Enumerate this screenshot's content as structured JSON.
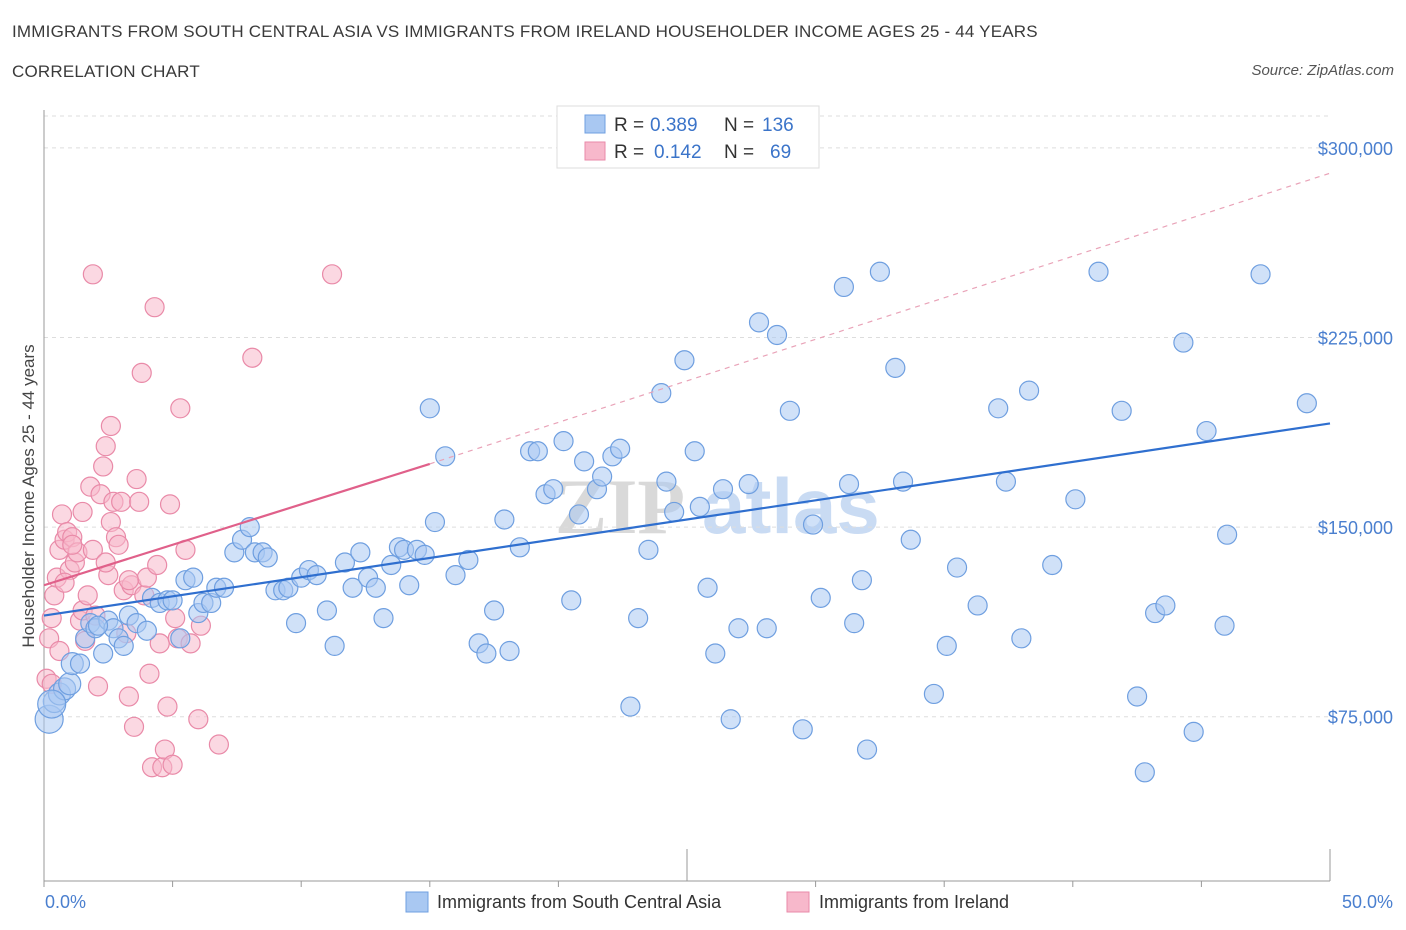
{
  "title": "IMMIGRANTS FROM SOUTH CENTRAL ASIA VS IMMIGRANTS FROM IRELAND HOUSEHOLDER INCOME AGES 25 - 44 YEARS",
  "subtitle": "CORRELATION CHART",
  "source": "Source: ZipAtlas.com",
  "watermark": {
    "zip": "ZIP",
    "atlas": "atlas"
  },
  "legend": {
    "r_label": "R =",
    "n_label": "N =",
    "series_a": {
      "r": "0.389",
      "n": "136"
    },
    "series_b": {
      "r": "0.142",
      "n": "69"
    }
  },
  "chart_data": {
    "type": "scatter",
    "title": "IMMIGRANTS FROM SOUTH CENTRAL ASIA VS IMMIGRANTS FROM IRELAND HOUSEHOLDER INCOME AGES 25 - 44 YEARS",
    "xlabel": "",
    "ylabel": "Householder Income Ages 25 - 44 years",
    "xlim": [
      0,
      50
    ],
    "ylim": [
      10000,
      315000
    ],
    "x_tick_labels": [
      "0.0%",
      "50.0%"
    ],
    "x_tick_values": [
      0,
      50
    ],
    "y_ticks": [
      {
        "value": 75000,
        "label": "$75,000"
      },
      {
        "value": 150000,
        "label": "$150,000"
      },
      {
        "value": 225000,
        "label": "$225,000"
      },
      {
        "value": 300000,
        "label": "$300,000"
      }
    ],
    "colors": {
      "a_fill": "#a9c8f2",
      "a_stroke": "#6f9fe0",
      "a_line": "#2f6fcf",
      "b_fill": "#f7b8cb",
      "b_stroke": "#e98aa8",
      "b_line": "#e0608a"
    },
    "series": [
      {
        "name": "Immigrants from South Central Asia",
        "trend": {
          "x": [
            0,
            50
          ],
          "y": [
            115000,
            191000
          ]
        },
        "points": [
          [
            0.2,
            74000
          ],
          [
            0.4,
            81000
          ],
          [
            0.6,
            84000
          ],
          [
            0.8,
            86000
          ],
          [
            1.0,
            88000
          ],
          [
            1.1,
            96000
          ],
          [
            1.4,
            96000
          ],
          [
            1.6,
            106000
          ],
          [
            1.8,
            112000
          ],
          [
            2.0,
            110000
          ],
          [
            2.3,
            100000
          ],
          [
            2.5,
            113000
          ],
          [
            2.7,
            110000
          ],
          [
            2.9,
            106000
          ],
          [
            3.1,
            103000
          ],
          [
            3.3,
            115000
          ],
          [
            3.6,
            112000
          ],
          [
            4.0,
            109000
          ],
          [
            4.2,
            122000
          ],
          [
            4.5,
            120000
          ],
          [
            4.8,
            121000
          ],
          [
            5.0,
            121000
          ],
          [
            5.3,
            106000
          ],
          [
            5.5,
            129000
          ],
          [
            5.8,
            130000
          ],
          [
            6.0,
            116000
          ],
          [
            6.2,
            120000
          ],
          [
            6.5,
            120000
          ],
          [
            6.7,
            126000
          ],
          [
            7.0,
            126000
          ],
          [
            7.4,
            140000
          ],
          [
            7.7,
            145000
          ],
          [
            8.0,
            150000
          ],
          [
            8.2,
            140000
          ],
          [
            8.5,
            140000
          ],
          [
            8.7,
            138000
          ],
          [
            9.0,
            125000
          ],
          [
            9.3,
            125000
          ],
          [
            9.5,
            126000
          ],
          [
            9.8,
            112000
          ],
          [
            10.0,
            130000
          ],
          [
            10.3,
            133000
          ],
          [
            10.6,
            131000
          ],
          [
            11.0,
            117000
          ],
          [
            11.3,
            103000
          ],
          [
            11.7,
            136000
          ],
          [
            12.0,
            126000
          ],
          [
            12.3,
            140000
          ],
          [
            12.6,
            130000
          ],
          [
            12.9,
            126000
          ],
          [
            13.2,
            114000
          ],
          [
            13.5,
            135000
          ],
          [
            13.8,
            142000
          ],
          [
            14.0,
            141000
          ],
          [
            14.2,
            127000
          ],
          [
            14.5,
            141000
          ],
          [
            14.8,
            139000
          ],
          [
            15.0,
            197000
          ],
          [
            15.2,
            152000
          ],
          [
            15.6,
            178000
          ],
          [
            16.0,
            131000
          ],
          [
            16.5,
            137000
          ],
          [
            16.9,
            104000
          ],
          [
            17.2,
            100000
          ],
          [
            17.5,
            117000
          ],
          [
            17.9,
            153000
          ],
          [
            18.1,
            101000
          ],
          [
            18.5,
            142000
          ],
          [
            18.9,
            180000
          ],
          [
            19.2,
            180000
          ],
          [
            19.5,
            163000
          ],
          [
            19.8,
            165000
          ],
          [
            20.2,
            184000
          ],
          [
            20.5,
            121000
          ],
          [
            20.8,
            155000
          ],
          [
            21.0,
            176000
          ],
          [
            21.5,
            165000
          ],
          [
            21.7,
            170000
          ],
          [
            22.1,
            178000
          ],
          [
            22.4,
            181000
          ],
          [
            22.8,
            79000
          ],
          [
            23.1,
            114000
          ],
          [
            23.5,
            141000
          ],
          [
            24.0,
            203000
          ],
          [
            24.2,
            168000
          ],
          [
            24.5,
            156000
          ],
          [
            24.9,
            216000
          ],
          [
            25.3,
            180000
          ],
          [
            25.5,
            158000
          ],
          [
            25.8,
            126000
          ],
          [
            26.1,
            100000
          ],
          [
            26.4,
            165000
          ],
          [
            26.7,
            74000
          ],
          [
            27.0,
            110000
          ],
          [
            27.4,
            167000
          ],
          [
            27.8,
            231000
          ],
          [
            28.1,
            110000
          ],
          [
            28.5,
            226000
          ],
          [
            29.0,
            196000
          ],
          [
            29.5,
            70000
          ],
          [
            29.9,
            151000
          ],
          [
            30.2,
            122000
          ],
          [
            31.1,
            245000
          ],
          [
            31.3,
            167000
          ],
          [
            31.5,
            112000
          ],
          [
            31.8,
            129000
          ],
          [
            32.0,
            62000
          ],
          [
            32.5,
            251000
          ],
          [
            33.1,
            213000
          ],
          [
            33.4,
            168000
          ],
          [
            33.7,
            145000
          ],
          [
            34.6,
            84000
          ],
          [
            35.1,
            103000
          ],
          [
            35.5,
            134000
          ],
          [
            36.3,
            119000
          ],
          [
            37.1,
            197000
          ],
          [
            37.4,
            168000
          ],
          [
            38.0,
            106000
          ],
          [
            38.3,
            204000
          ],
          [
            39.2,
            135000
          ],
          [
            40.1,
            161000
          ],
          [
            41.0,
            251000
          ],
          [
            41.9,
            196000
          ],
          [
            42.5,
            83000
          ],
          [
            42.8,
            53000
          ],
          [
            43.2,
            116000
          ],
          [
            43.6,
            119000
          ],
          [
            44.3,
            223000
          ],
          [
            44.7,
            69000
          ],
          [
            45.2,
            188000
          ],
          [
            45.9,
            111000
          ],
          [
            46.0,
            147000
          ],
          [
            47.3,
            250000
          ],
          [
            49.1,
            199000
          ],
          [
            0.3,
            80000
          ],
          [
            2.1,
            111000
          ]
        ]
      },
      {
        "name": "Immigrants from Ireland",
        "trend": {
          "x": [
            0,
            15
          ],
          "y": [
            127000,
            175000
          ]
        },
        "trend_extension": {
          "x": [
            15,
            50
          ],
          "y": [
            175000,
            290000
          ]
        },
        "points": [
          [
            0.1,
            90000
          ],
          [
            0.2,
            106000
          ],
          [
            0.3,
            114000
          ],
          [
            0.4,
            123000
          ],
          [
            0.5,
            130000
          ],
          [
            0.6,
            141000
          ],
          [
            0.7,
            155000
          ],
          [
            0.8,
            145000
          ],
          [
            0.9,
            148000
          ],
          [
            1.0,
            133000
          ],
          [
            1.1,
            146000
          ],
          [
            1.2,
            136000
          ],
          [
            1.3,
            140000
          ],
          [
            1.4,
            113000
          ],
          [
            1.5,
            117000
          ],
          [
            1.6,
            105000
          ],
          [
            1.7,
            123000
          ],
          [
            1.8,
            166000
          ],
          [
            1.9,
            141000
          ],
          [
            2.0,
            115000
          ],
          [
            2.1,
            87000
          ],
          [
            2.2,
            163000
          ],
          [
            2.3,
            174000
          ],
          [
            2.4,
            182000
          ],
          [
            2.5,
            131000
          ],
          [
            2.6,
            152000
          ],
          [
            2.7,
            160000
          ],
          [
            2.8,
            146000
          ],
          [
            2.9,
            143000
          ],
          [
            3.0,
            160000
          ],
          [
            3.1,
            125000
          ],
          [
            3.2,
            108000
          ],
          [
            3.3,
            83000
          ],
          [
            3.4,
            127000
          ],
          [
            3.5,
            71000
          ],
          [
            3.6,
            169000
          ],
          [
            3.7,
            160000
          ],
          [
            3.8,
            211000
          ],
          [
            3.9,
            123000
          ],
          [
            4.0,
            130000
          ],
          [
            4.1,
            92000
          ],
          [
            4.2,
            55000
          ],
          [
            4.3,
            237000
          ],
          [
            4.4,
            135000
          ],
          [
            4.5,
            104000
          ],
          [
            4.6,
            55000
          ],
          [
            4.7,
            62000
          ],
          [
            4.8,
            79000
          ],
          [
            4.9,
            159000
          ],
          [
            5.0,
            56000
          ],
          [
            5.1,
            114000
          ],
          [
            5.2,
            106000
          ],
          [
            5.3,
            197000
          ],
          [
            5.5,
            141000
          ],
          [
            5.7,
            104000
          ],
          [
            6.0,
            74000
          ],
          [
            6.1,
            111000
          ],
          [
            6.8,
            64000
          ],
          [
            2.6,
            190000
          ],
          [
            1.5,
            156000
          ],
          [
            8.1,
            217000
          ],
          [
            11.2,
            250000
          ],
          [
            1.1,
            143000
          ],
          [
            0.8,
            128000
          ],
          [
            1.9,
            250000
          ],
          [
            2.4,
            136000
          ],
          [
            0.3,
            88000
          ],
          [
            0.6,
            101000
          ],
          [
            3.3,
            129000
          ]
        ]
      }
    ],
    "legend_entries": [
      "Immigrants from South Central Asia",
      "Immigrants from Ireland"
    ]
  }
}
